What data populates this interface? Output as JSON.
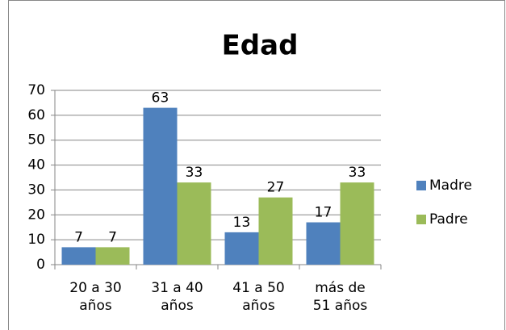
{
  "chart_data": {
    "type": "bar",
    "title": "Edad",
    "categories": [
      "20 a 30 años",
      "31 a 40 años",
      "41 a 50 años",
      "más de 51 años"
    ],
    "series": [
      {
        "name": "Madre",
        "color": "#4f81bd",
        "values": [
          7,
          63,
          13,
          17
        ]
      },
      {
        "name": "Padre",
        "color": "#9bbb59",
        "values": [
          7,
          33,
          27,
          33
        ]
      }
    ],
    "ylim": [
      0,
      70
    ],
    "yticks": [
      0,
      10,
      20,
      30,
      40,
      50,
      60,
      70
    ],
    "grid": true,
    "legend": "right"
  }
}
